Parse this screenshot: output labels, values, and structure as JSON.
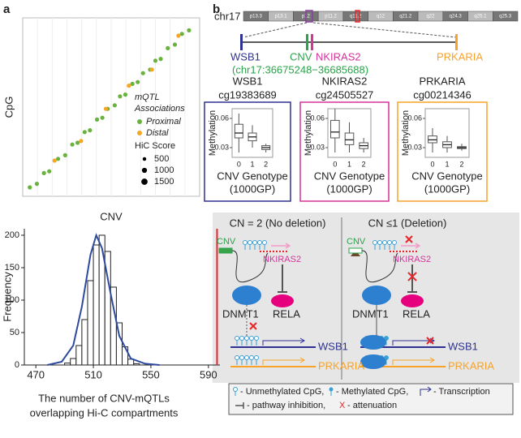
{
  "panel_labels": [
    "a",
    "b"
  ],
  "chart_data": [
    {
      "type": "scatter",
      "xlabel": "CNV",
      "ylabel": "CpG",
      "xlim": [
        0,
        1
      ],
      "ylim": [
        0,
        1
      ],
      "legend_title": [
        "mQTL",
        "Associations"
      ],
      "series": [
        {
          "name": "Proximal",
          "color": "#6ab23e",
          "x": [
            0.04,
            0.08,
            0.12,
            0.15,
            0.2,
            0.24,
            0.28,
            0.31,
            0.35,
            0.38,
            0.42,
            0.45,
            0.48,
            0.52,
            0.55,
            0.58,
            0.62,
            0.65,
            0.68,
            0.72,
            0.75,
            0.78,
            0.82,
            0.86,
            0.9,
            0.94
          ],
          "y": [
            0.05,
            0.07,
            0.13,
            0.14,
            0.21,
            0.23,
            0.29,
            0.3,
            0.36,
            0.37,
            0.43,
            0.44,
            0.49,
            0.51,
            0.56,
            0.57,
            0.63,
            0.64,
            0.69,
            0.71,
            0.76,
            0.77,
            0.83,
            0.85,
            0.91,
            0.93
          ]
        },
        {
          "name": "Distal",
          "color": "#f5a623",
          "x": [
            0.18,
            0.33,
            0.47,
            0.6,
            0.73,
            0.88
          ],
          "y": [
            0.2,
            0.31,
            0.49,
            0.62,
            0.71,
            0.9
          ]
        }
      ],
      "size_legend": {
        "title": "HiC Score",
        "values": [
          500,
          1000,
          1500
        ]
      }
    },
    {
      "type": "histogram",
      "ylabel": "Frequency",
      "xlabel": [
        "The number of CNV-mQTLs",
        "overlapping Hi-C compartments"
      ],
      "bins": [
        490,
        494,
        498,
        502,
        506,
        510,
        514,
        518,
        522,
        526,
        530,
        534,
        538,
        542
      ],
      "counts": [
        3,
        10,
        30,
        70,
        130,
        185,
        200,
        175,
        120,
        65,
        28,
        9,
        2
      ],
      "color": "#ffffff",
      "xlim": [
        462,
        598
      ],
      "xticks": [
        470,
        510,
        550,
        590
      ],
      "ylim": [
        0,
        210
      ],
      "yticks": [
        0,
        50,
        100,
        150,
        200
      ],
      "density": {
        "x": [
          478,
          488,
          496,
          502,
          508,
          512,
          516,
          522,
          528,
          536,
          546,
          556
        ],
        "values": [
          0,
          5,
          30,
          90,
          170,
          200,
          180,
          110,
          45,
          10,
          2,
          0
        ],
        "color": "#2e4a9e"
      },
      "observed": 596,
      "observed_color": "#e8262a"
    },
    {
      "type": "box",
      "title": [
        "WSB1",
        "cg19383689"
      ],
      "ylabel": "Methylation",
      "xlabel": [
        "CNV Genotype",
        "(1000GP)"
      ],
      "categories": [
        "0",
        "1",
        "2"
      ],
      "ylim": [
        0.02,
        0.07
      ],
      "yticks": [
        0.06,
        0.03
      ],
      "frame_color": "#2e3192",
      "boxes": {
        "min": [
          0.025,
          0.03,
          0.025
        ],
        "q1": [
          0.04,
          0.037,
          0.028
        ],
        "median": [
          0.045,
          0.041,
          0.03
        ],
        "q3": [
          0.054,
          0.045,
          0.032
        ],
        "max": [
          0.065,
          0.053,
          0.034
        ]
      }
    },
    {
      "type": "box",
      "title": [
        "NKIRAS2",
        "cg24505527"
      ],
      "ylabel": "Methylation",
      "xlabel": [
        "CNV Genotype",
        "(1000GP)"
      ],
      "categories": [
        "0",
        "1",
        "2"
      ],
      "ylim": [
        0.02,
        0.07
      ],
      "yticks": [
        0.06,
        0.03
      ],
      "frame_color": "#d6339b",
      "boxes": {
        "min": [
          0.025,
          0.025,
          0.025
        ],
        "q1": [
          0.04,
          0.033,
          0.029
        ],
        "median": [
          0.046,
          0.038,
          0.032
        ],
        "q3": [
          0.058,
          0.045,
          0.035
        ],
        "max": [
          0.07,
          0.056,
          0.04
        ]
      }
    },
    {
      "type": "box",
      "title": [
        "PRKARIA",
        "cg00214346"
      ],
      "ylabel": "Methylation",
      "xlabel": [
        "CNV Genotype",
        "(1000GP)"
      ],
      "categories": [
        "0",
        "1",
        "2"
      ],
      "ylim": [
        0.02,
        0.07
      ],
      "yticks": [
        0.06,
        0.03
      ],
      "frame_color": "#f7a32a",
      "boxes": {
        "min": [
          0.025,
          0.025,
          0.027
        ],
        "q1": [
          0.035,
          0.03,
          0.029
        ],
        "median": [
          0.038,
          0.033,
          0.03
        ],
        "q3": [
          0.042,
          0.036,
          0.031
        ],
        "max": [
          0.05,
          0.042,
          0.034
        ]
      }
    }
  ],
  "locus": {
    "chromosome": "chr17",
    "bands": [
      "p13.3",
      "p13.1",
      "p12",
      "p11.2",
      "q11.2",
      "q12",
      "q21.2",
      "q22",
      "q24.3",
      "q25.1",
      "q25.3"
    ],
    "wsb1": "WSB1",
    "cnv": "CNV",
    "nkiras2": "NKIRAS2",
    "prkaria": "PRKARIA",
    "cnv_coords": "(chr17:36675248−36685688)"
  },
  "diagram": {
    "left": {
      "title": "CN = 2 (No deletion)",
      "cnv": "CNV",
      "nkiras2": "NKIRAS2",
      "dnmt1": "DNMT1",
      "rela": "RELA",
      "wsb1": "WSB1",
      "prkaria": "PRKARIA"
    },
    "right": {
      "title": "CN ≤1 (Deletion)",
      "cnv": "CNV",
      "nkiras2": "NKIRAS2",
      "dnmt1": "DNMT1",
      "rela": "RELA",
      "wsb1": "WSB1",
      "prkaria": "PRKARIA"
    },
    "legend": [
      "- Unmethylated CpG,",
      "- Methylated CpG,",
      "- Transcription",
      "- pathway inhibition,",
      "X",
      "- attenuation"
    ]
  }
}
